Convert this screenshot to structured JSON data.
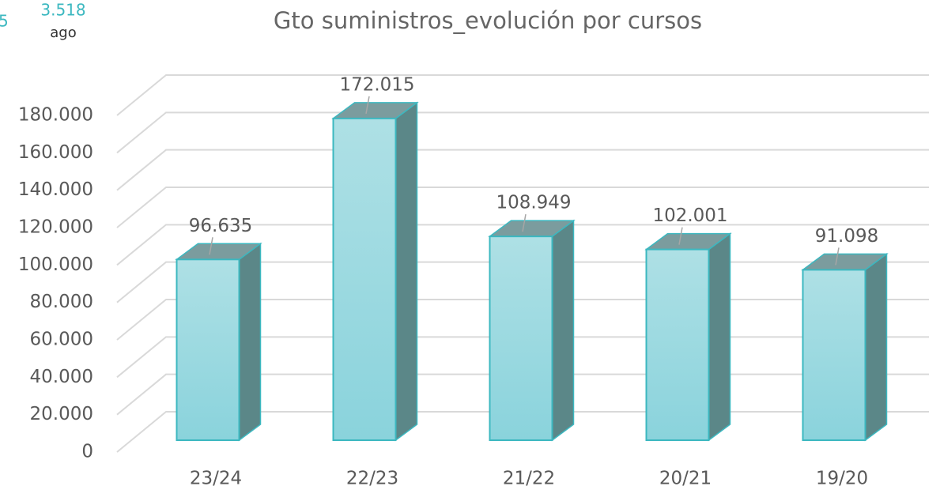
{
  "clipped_header": {
    "left_value": "5",
    "value": "3.518",
    "label": "ago"
  },
  "chart_data": {
    "type": "bar3d",
    "title": "Gto suministros_evolución por cursos",
    "categories": [
      "23/24",
      "22/23",
      "21/22",
      "20/21",
      "19/20"
    ],
    "values": [
      96635,
      172015,
      108949,
      102001,
      91098
    ],
    "value_labels": [
      "96.635",
      "172.015",
      "108.949",
      "102.001",
      "91.098"
    ],
    "color": "#9ad8df",
    "ylim": [
      0,
      180000
    ],
    "yticks": [
      0,
      {
        "value": 20000,
        "label": "20.000"
      },
      {
        "value": 40000,
        "label": "40.000"
      },
      {
        "value": 60000,
        "label": "60.000"
      },
      {
        "value": 80000,
        "label": "80.000"
      },
      {
        "value": 100000,
        "label": "100.000"
      },
      {
        "value": 120000,
        "label": "120.000"
      },
      {
        "value": 140000,
        "label": "140.000"
      },
      {
        "value": 160000,
        "label": "160.000"
      },
      {
        "value": 180000,
        "label": "180.000"
      }
    ],
    "grid": true
  }
}
